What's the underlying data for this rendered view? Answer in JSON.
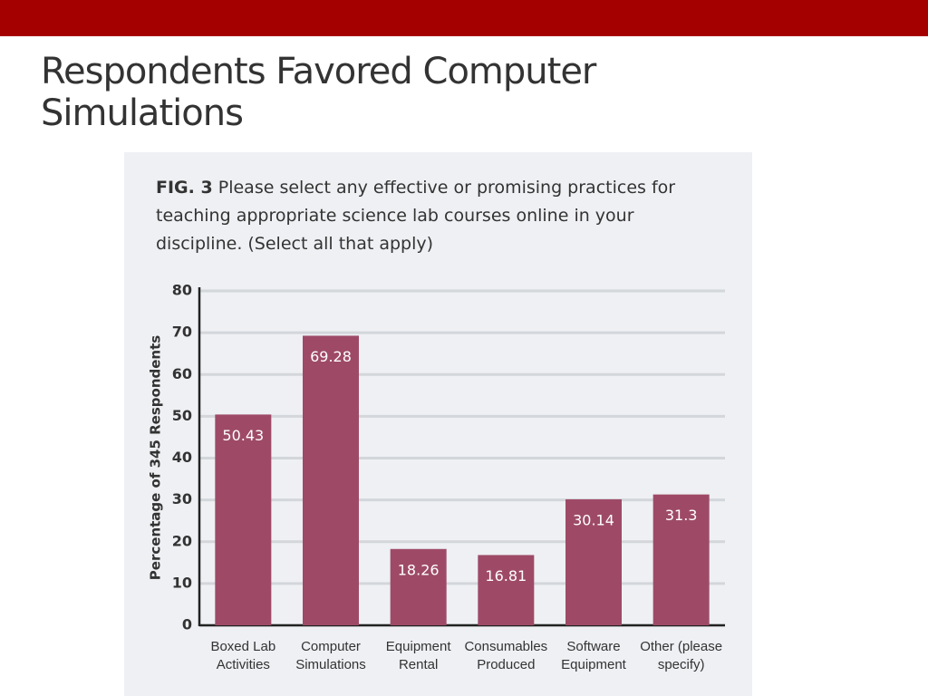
{
  "slide_title": "Respondents Favored Computer Simulations",
  "chart_data": {
    "type": "bar",
    "figure_label": "FIG. 3",
    "title": "Please select any effective or promising practices for teaching appropriate science lab courses online in your discipline. (Select all that apply)",
    "ylabel": "Percentage of 345 Respondents",
    "categories": [
      "Boxed Lab Activities",
      "Computer Simulations",
      "Equipment Rental",
      "Consumables Produced",
      "Software Equipment",
      "Other (please specify)"
    ],
    "values": [
      50.43,
      69.28,
      18.26,
      16.81,
      30.14,
      31.3
    ],
    "color": "#9e4a67",
    "ylim": [
      0,
      80
    ],
    "yticks": [
      0,
      10,
      20,
      30,
      40,
      50,
      60,
      70,
      80
    ],
    "grid": true
  }
}
